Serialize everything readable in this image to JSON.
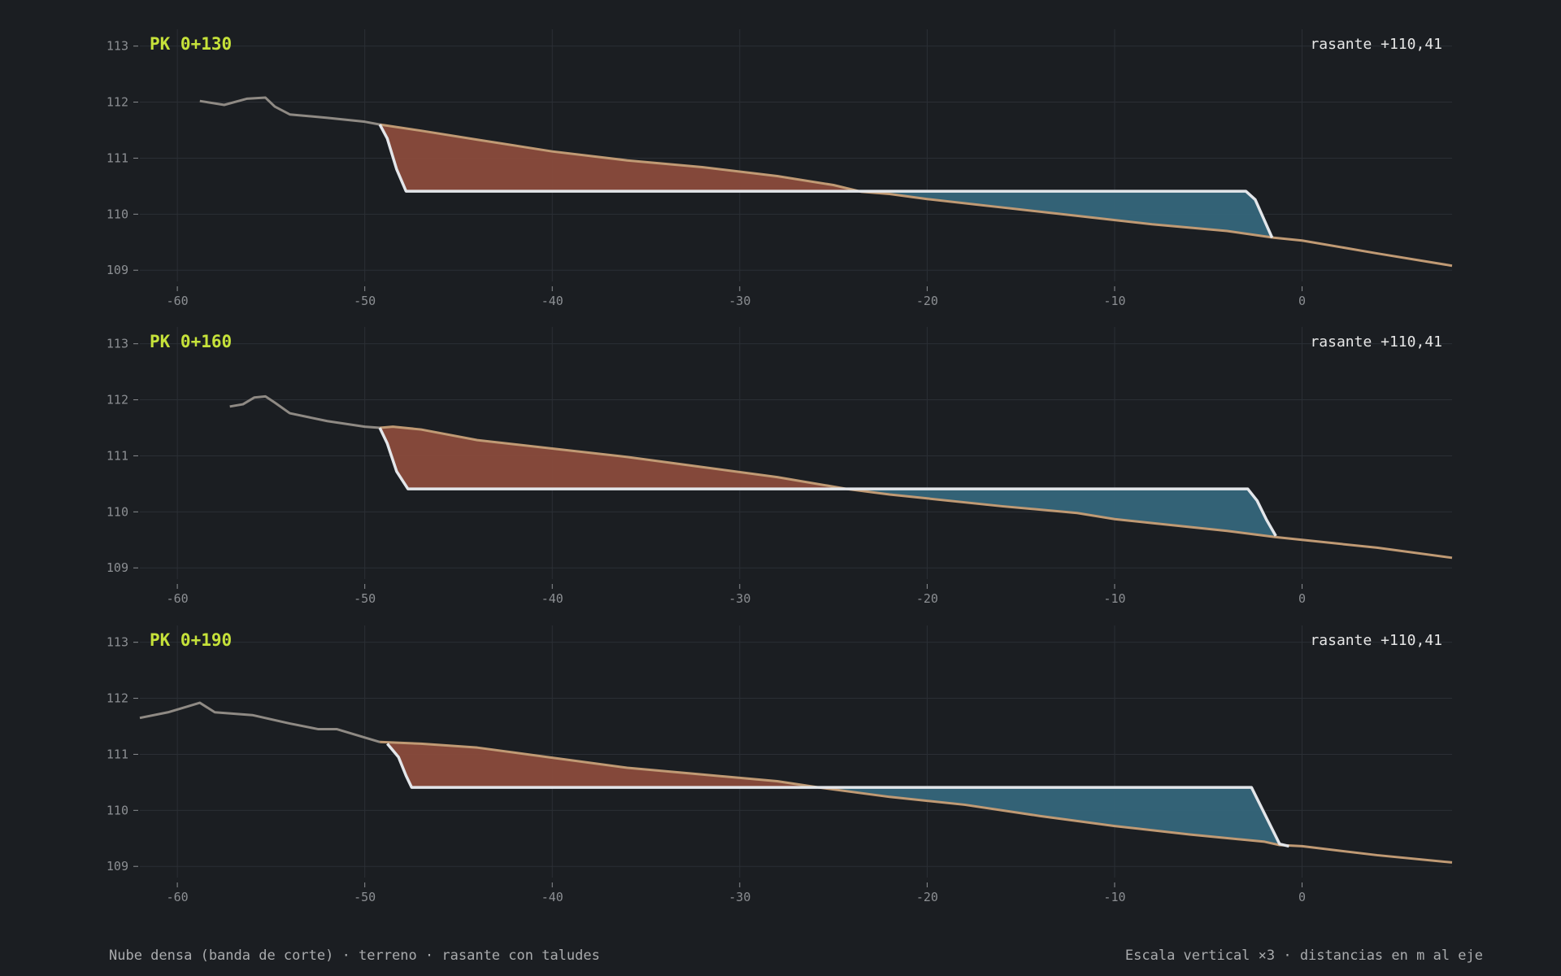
{
  "colors": {
    "background": "#1b1e22",
    "grid": "#2b2f35",
    "axis_text": "#8c8f93",
    "pk_label": "#c6e23a",
    "rasante_label": "#e6e6e6",
    "cut_fill": "#8a4b3c",
    "fill_fill": "#35667b",
    "terrain": "#c09a74",
    "terrain_far": "#8f8a84",
    "design_line": "#e3e6ea"
  },
  "footer": {
    "left": "Nube densa (banda de corte) · terreno · rasante con taludes",
    "right": "Escala vertical ×3 · distancias en m al eje"
  },
  "chart_data": [
    {
      "type": "area",
      "title": "PK 0+130",
      "annotation": "rasante +110,41",
      "xlim": [
        -62,
        8
      ],
      "ylim": [
        108.8,
        113.3
      ],
      "x_ticks": [
        -60,
        -50,
        -40,
        -30,
        -20,
        -10,
        0
      ],
      "y_ticks": [
        109,
        110,
        111,
        112,
        113
      ],
      "grade": 110.41,
      "terrain": [
        [
          -58.8,
          112.02
        ],
        [
          -57.5,
          111.95
        ],
        [
          -56.3,
          112.06
        ],
        [
          -55.3,
          112.08
        ],
        [
          -54.8,
          111.92
        ],
        [
          -54.0,
          111.78
        ],
        [
          -52.0,
          111.72
        ],
        [
          -50.0,
          111.65
        ],
        [
          -49.2,
          111.6
        ],
        [
          -47.0,
          111.49
        ],
        [
          -44.0,
          111.33
        ],
        [
          -40.0,
          111.12
        ],
        [
          -36.0,
          110.96
        ],
        [
          -32.0,
          110.84
        ],
        [
          -28.0,
          110.68
        ],
        [
          -25.0,
          110.52
        ],
        [
          -23.5,
          110.4
        ],
        [
          -22.0,
          110.36
        ],
        [
          -20.0,
          110.27
        ],
        [
          -16.0,
          110.12
        ],
        [
          -12.0,
          109.97
        ],
        [
          -8.0,
          109.82
        ],
        [
          -4.0,
          109.7
        ],
        [
          -1.5,
          109.58
        ],
        [
          0.0,
          109.53
        ],
        [
          4.0,
          109.3
        ],
        [
          8.0,
          109.08
        ]
      ],
      "design": [
        [
          -49.2,
          111.6
        ],
        [
          -48.8,
          111.35
        ],
        [
          -48.3,
          110.8
        ],
        [
          -47.8,
          110.41
        ],
        [
          -3.0,
          110.41
        ],
        [
          -2.5,
          110.26
        ],
        [
          -1.6,
          109.58
        ]
      ]
    },
    {
      "type": "area",
      "title": "PK 0+160",
      "annotation": "rasante +110,41",
      "xlim": [
        -62,
        8
      ],
      "ylim": [
        108.8,
        113.3
      ],
      "x_ticks": [
        -60,
        -50,
        -40,
        -30,
        -20,
        -10,
        0
      ],
      "y_ticks": [
        109,
        110,
        111,
        112,
        113
      ],
      "grade": 110.41,
      "terrain": [
        [
          -57.2,
          111.88
        ],
        [
          -56.5,
          111.92
        ],
        [
          -55.9,
          112.04
        ],
        [
          -55.3,
          112.06
        ],
        [
          -54.8,
          111.95
        ],
        [
          -54.0,
          111.76
        ],
        [
          -52.0,
          111.62
        ],
        [
          -50.0,
          111.52
        ],
        [
          -49.2,
          111.5
        ],
        [
          -48.5,
          111.52
        ],
        [
          -47.0,
          111.47
        ],
        [
          -44.0,
          111.28
        ],
        [
          -40.0,
          111.13
        ],
        [
          -36.0,
          110.98
        ],
        [
          -32.0,
          110.8
        ],
        [
          -28.0,
          110.62
        ],
        [
          -24.3,
          110.41
        ],
        [
          -22.0,
          110.31
        ],
        [
          -20.0,
          110.24
        ],
        [
          -16.0,
          110.1
        ],
        [
          -12.0,
          109.98
        ],
        [
          -10.0,
          109.87
        ],
        [
          -8.0,
          109.8
        ],
        [
          -4.0,
          109.66
        ],
        [
          -1.4,
          109.55
        ],
        [
          0.0,
          109.5
        ],
        [
          4.0,
          109.36
        ],
        [
          8.0,
          109.18
        ]
      ],
      "design": [
        [
          -49.2,
          111.5
        ],
        [
          -48.8,
          111.22
        ],
        [
          -48.3,
          110.72
        ],
        [
          -47.7,
          110.41
        ],
        [
          -2.9,
          110.41
        ],
        [
          -2.4,
          110.2
        ],
        [
          -1.9,
          109.86
        ],
        [
          -1.4,
          109.57
        ]
      ]
    },
    {
      "type": "area",
      "title": "PK 0+190",
      "annotation": "rasante +110,41",
      "xlim": [
        -62,
        8
      ],
      "ylim": [
        108.8,
        113.3
      ],
      "x_ticks": [
        -60,
        -50,
        -40,
        -30,
        -20,
        -10,
        0
      ],
      "y_ticks": [
        109,
        110,
        111,
        112,
        113
      ],
      "grade": 110.41,
      "terrain": [
        [
          -62.0,
          111.65
        ],
        [
          -60.5,
          111.75
        ],
        [
          -59.5,
          111.85
        ],
        [
          -58.8,
          111.92
        ],
        [
          -58.0,
          111.75
        ],
        [
          -56.0,
          111.7
        ],
        [
          -54.0,
          111.55
        ],
        [
          -52.5,
          111.45
        ],
        [
          -51.5,
          111.45
        ],
        [
          -50.0,
          111.3
        ],
        [
          -49.2,
          111.22
        ],
        [
          -47.0,
          111.19
        ],
        [
          -44.0,
          111.12
        ],
        [
          -40.0,
          110.94
        ],
        [
          -36.0,
          110.76
        ],
        [
          -32.0,
          110.64
        ],
        [
          -28.0,
          110.52
        ],
        [
          -25.8,
          110.41
        ],
        [
          -22.0,
          110.24
        ],
        [
          -18.0,
          110.1
        ],
        [
          -14.0,
          109.9
        ],
        [
          -10.0,
          109.72
        ],
        [
          -6.0,
          109.57
        ],
        [
          -2.0,
          109.44
        ],
        [
          -1.2,
          109.38
        ],
        [
          0.0,
          109.36
        ],
        [
          4.0,
          109.2
        ],
        [
          8.0,
          109.07
        ]
      ],
      "design": [
        [
          -48.8,
          111.19
        ],
        [
          -48.2,
          110.95
        ],
        [
          -47.8,
          110.62
        ],
        [
          -47.5,
          110.41
        ],
        [
          -2.7,
          110.41
        ],
        [
          -1.2,
          109.4
        ],
        [
          -0.7,
          109.36
        ]
      ]
    }
  ]
}
